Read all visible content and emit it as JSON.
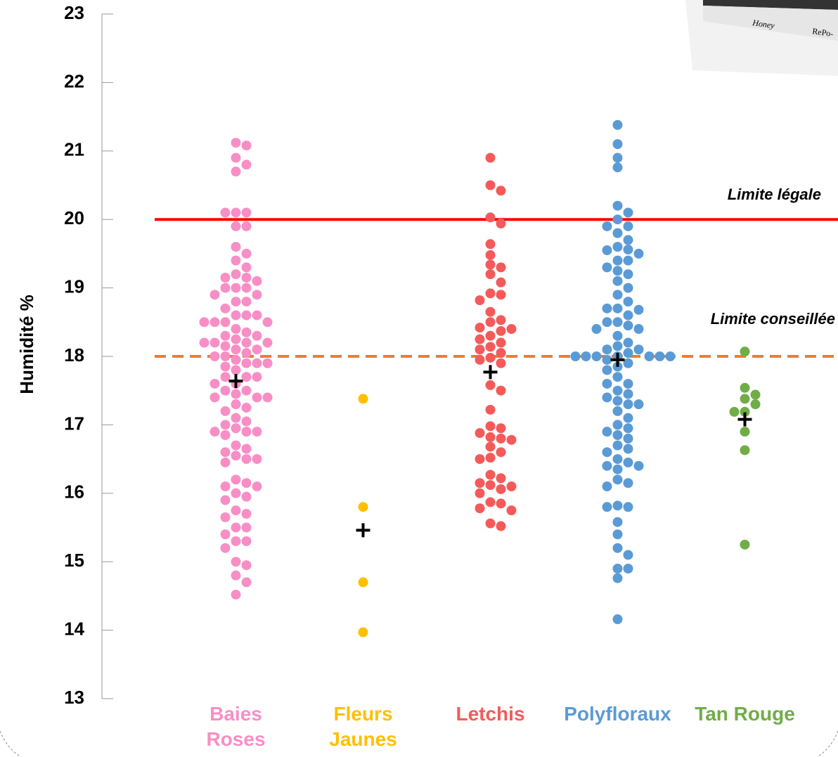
{
  "chart_data": {
    "type": "strip",
    "y_label": "Humidité %",
    "ylim": [
      13,
      23
    ],
    "yticks": [
      13,
      14,
      15,
      16,
      17,
      18,
      19,
      20,
      21,
      22,
      23
    ],
    "mean_marker_color": "#000000",
    "reference_lines": [
      {
        "value": 20,
        "label": "Limite légale",
        "color": "#ff0000",
        "style": "solid"
      },
      {
        "value": 18,
        "label": "Limite conseillée",
        "color": "#ed7d31",
        "style": "dashed"
      }
    ],
    "series": [
      {
        "name": "Baies Roses",
        "color": "#f78fc6",
        "mean": 17.64,
        "values": [
          21.12,
          21.08,
          20.9,
          20.8,
          20.7,
          20.1,
          20.1,
          20.1,
          19.9,
          19.9,
          19.6,
          19.5,
          19.4,
          19.3,
          19.2,
          19.15,
          19.15,
          19.1,
          19.0,
          19.0,
          19.0,
          18.9,
          18.9,
          18.8,
          18.8,
          18.7,
          18.6,
          18.6,
          18.6,
          18.5,
          18.5,
          18.5,
          18.5,
          18.4,
          18.35,
          18.3,
          18.3,
          18.25,
          18.2,
          18.2,
          18.2,
          18.2,
          18.15,
          18.1,
          18.1,
          18.05,
          18.0,
          18.0,
          17.95,
          17.9,
          17.9,
          17.9,
          17.85,
          17.8,
          17.7,
          17.7,
          17.7,
          17.6,
          17.6,
          17.5,
          17.5,
          17.45,
          17.4,
          17.4,
          17.4,
          17.3,
          17.25,
          17.2,
          17.1,
          17.05,
          17.0,
          16.95,
          16.9,
          16.9,
          16.9,
          16.85,
          16.7,
          16.65,
          16.6,
          16.55,
          16.5,
          16.5,
          16.45,
          16.2,
          16.15,
          16.1,
          16.1,
          16.0,
          15.95,
          15.9,
          15.75,
          15.7,
          15.65,
          15.5,
          15.5,
          15.4,
          15.3,
          15.3,
          15.2,
          15.0,
          14.95,
          14.8,
          14.7,
          14.52
        ]
      },
      {
        "name": "Fleurs Jaunes",
        "color": "#ffc000",
        "mean": 15.46,
        "values": [
          17.38,
          15.8,
          14.7,
          13.97
        ]
      },
      {
        "name": "Letchis",
        "color": "#f55a5a",
        "mean": 17.77,
        "values": [
          20.9,
          20.5,
          20.42,
          20.03,
          19.94,
          19.64,
          19.48,
          19.34,
          19.3,
          19.2,
          19.08,
          18.92,
          18.9,
          18.82,
          18.65,
          18.53,
          18.5,
          18.42,
          18.4,
          18.37,
          18.3,
          18.25,
          18.2,
          18.14,
          18.1,
          18.05,
          17.98,
          17.95,
          17.9,
          17.58,
          17.5,
          17.22,
          16.98,
          16.95,
          16.88,
          16.82,
          16.8,
          16.78,
          16.68,
          16.6,
          16.52,
          16.5,
          16.27,
          16.22,
          16.15,
          16.12,
          16.1,
          16.06,
          16.0,
          15.87,
          15.85,
          15.78,
          15.75,
          15.56,
          15.52
        ]
      },
      {
        "name": "Polyfloraux",
        "color": "#5b9bd5",
        "mean": 17.95,
        "values": [
          21.38,
          21.1,
          20.9,
          20.76,
          20.2,
          20.1,
          20.0,
          19.9,
          19.9,
          19.8,
          19.7,
          19.6,
          19.56,
          19.55,
          19.5,
          19.4,
          19.4,
          19.3,
          19.25,
          19.2,
          19.1,
          19.0,
          18.9,
          18.8,
          18.7,
          18.7,
          18.68,
          18.6,
          18.5,
          18.5,
          18.45,
          18.4,
          18.4,
          18.3,
          18.2,
          18.15,
          18.1,
          18.1,
          18.05,
          18.0,
          18.0,
          18.0,
          18.0,
          18.0,
          18.0,
          18.0,
          17.95,
          17.9,
          17.85,
          17.8,
          17.7,
          17.6,
          17.6,
          17.5,
          17.45,
          17.4,
          17.35,
          17.3,
          17.3,
          17.2,
          17.1,
          17.0,
          16.95,
          16.9,
          16.85,
          16.8,
          16.7,
          16.65,
          16.6,
          16.5,
          16.45,
          16.4,
          16.4,
          16.35,
          16.2,
          16.15,
          16.1,
          15.82,
          15.8,
          15.8,
          15.58,
          15.4,
          15.2,
          15.1,
          14.9,
          14.9,
          14.76,
          14.16
        ]
      },
      {
        "name": "Tan Rouge",
        "color": "#70ad47",
        "mean": 17.08,
        "values": [
          18.07,
          17.54,
          17.44,
          17.38,
          17.3,
          17.19,
          17.19,
          16.9,
          16.63,
          15.25
        ]
      }
    ]
  },
  "photo": {
    "texts": [
      "Honey",
      "RePo-"
    ]
  }
}
